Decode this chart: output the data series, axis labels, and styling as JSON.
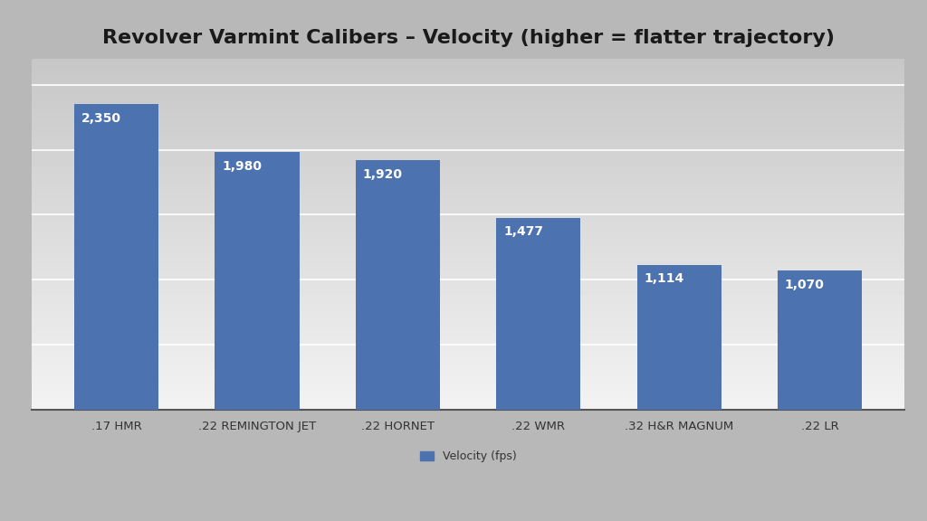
{
  "title": "Revolver Varmint Calibers – Velocity (higher = flatter trajectory)",
  "categories": [
    ".17 HMR",
    ".22 REMINGTON JET",
    ".22 HORNET",
    ".22 WMR",
    ".32 H&R MAGNUM",
    ".22 LR"
  ],
  "values": [
    2350,
    1980,
    1920,
    1477,
    1114,
    1070
  ],
  "bar_color": "#4C72B0",
  "label_color": "#FFFFFF",
  "legend_label": "Velocity (fps)",
  "title_fontsize": 16,
  "label_fontsize": 10,
  "tick_fontsize": 9.5,
  "legend_fontsize": 9,
  "ylim": [
    0,
    2700
  ],
  "grid_yticks": [
    500,
    1000,
    1500,
    2000,
    2500
  ],
  "bar_width": 0.6,
  "fig_bg": "#b8b8b8",
  "plot_bg_dark": 0.78,
  "plot_bg_light": 0.95
}
